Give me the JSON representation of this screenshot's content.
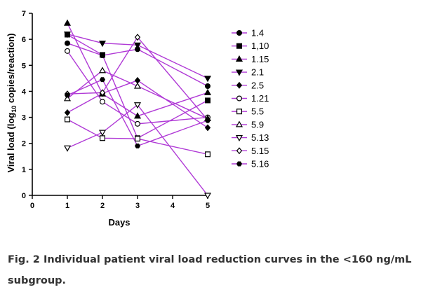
{
  "chart_data": {
    "type": "line",
    "title": "",
    "xlabel": "Days",
    "ylabel_main": "Viral load (log",
    "ylabel_sub": "10",
    "ylabel_tail": " copies/reaction)",
    "x_ticks": [
      0,
      1,
      2,
      3,
      4,
      5
    ],
    "x_tick_labels": [
      "0",
      "1",
      "2",
      "3",
      "4",
      "5"
    ],
    "y_ticks": [
      0,
      1,
      2,
      3,
      4,
      5,
      6,
      7
    ],
    "y_tick_labels": [
      "0",
      "1",
      "2",
      "3",
      "4",
      "5",
      "6",
      "7"
    ],
    "xlim": [
      0,
      5
    ],
    "ylim": [
      0,
      7
    ],
    "grid": false,
    "legend_position": "right",
    "line_color": "#b03ad6",
    "marker_color": "#000000",
    "series": [
      {
        "name": "1.4",
        "marker": "circle-filled",
        "x": [
          1,
          2,
          3,
          5
        ],
        "y": [
          5.85,
          5.38,
          5.62,
          4.2
        ]
      },
      {
        "name": "1,10",
        "marker": "square-filled",
        "x": [
          1,
          2,
          3,
          5
        ],
        "y": [
          6.18,
          5.4,
          2.2,
          3.65
        ]
      },
      {
        "name": "1.15",
        "marker": "triangle-up-filled",
        "x": [
          1,
          2,
          3,
          5
        ],
        "y": [
          6.62,
          3.9,
          3.05,
          3.95
        ]
      },
      {
        "name": "2.1",
        "marker": "triangle-down-filled",
        "x": [
          1,
          2,
          3,
          5
        ],
        "y": [
          6.2,
          5.85,
          5.78,
          4.5
        ]
      },
      {
        "name": "2.5",
        "marker": "diamond-filled",
        "x": [
          1,
          2,
          3,
          5
        ],
        "y": [
          3.18,
          3.92,
          4.42,
          2.6
        ]
      },
      {
        "name": "1.21",
        "marker": "circle-open",
        "x": [
          1,
          2,
          3,
          5
        ],
        "y": [
          5.55,
          3.6,
          2.75,
          3.0
        ]
      },
      {
        "name": "5.5",
        "marker": "square-open",
        "x": [
          1,
          2,
          3,
          5
        ],
        "y": [
          2.92,
          2.2,
          2.18,
          1.58
        ]
      },
      {
        "name": "5.9",
        "marker": "triangle-up-open",
        "x": [
          1,
          2,
          3,
          5
        ],
        "y": [
          3.72,
          4.8,
          4.2,
          2.95
        ]
      },
      {
        "name": "5.13",
        "marker": "triangle-down-open",
        "x": [
          1,
          2,
          3,
          5
        ],
        "y": [
          1.82,
          2.42,
          3.48,
          0.0
        ]
      },
      {
        "name": "5.15",
        "marker": "diamond-open",
        "x": [
          1,
          2,
          3,
          5
        ],
        "y": [
          3.9,
          3.95,
          6.08,
          2.9
        ]
      },
      {
        "name": "5.16",
        "marker": "hexagon-filled",
        "x": [
          1,
          2,
          3,
          5
        ],
        "y": [
          3.85,
          4.45,
          1.9,
          2.88
        ]
      }
    ]
  },
  "caption": {
    "line1": "Fig. 2 Individual patient viral load reduction curves in the <160 ng/mL",
    "line2": "subgroup."
  }
}
